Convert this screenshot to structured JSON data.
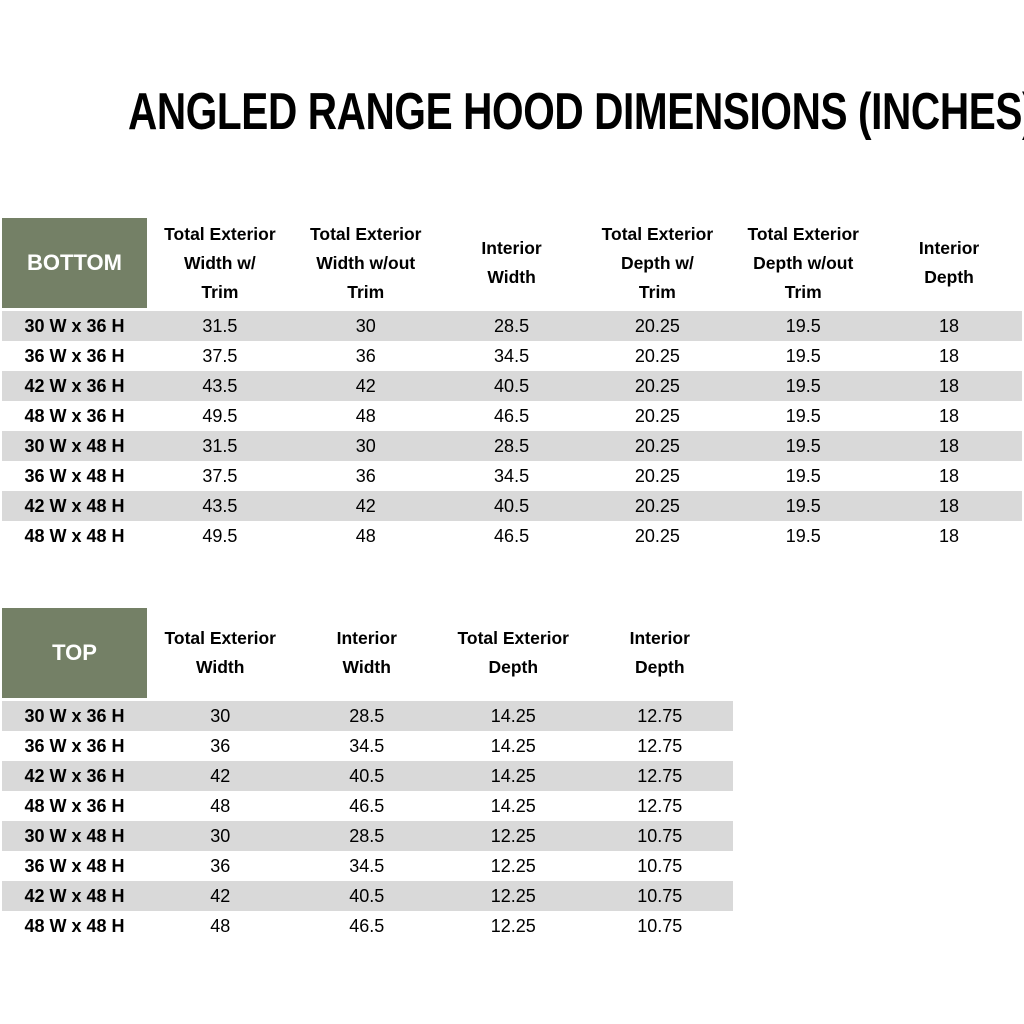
{
  "title": "ANGLED RANGE HOOD DIMENSIONS (INCHES)",
  "colors": {
    "header_cell_green": "#748066",
    "row_stripe_gray": "#d9d9d9",
    "header_label_text": "#ffffff",
    "body_text": "#000000"
  },
  "tables": {
    "bottom": {
      "corner_label": "BOTTOM",
      "columns": [
        [
          "Total Exterior",
          "Width w/",
          "Trim"
        ],
        [
          "Total Exterior",
          "Width w/out",
          "Trim"
        ],
        [
          "Interior",
          "Width"
        ],
        [
          "Total Exterior",
          "Depth w/",
          "Trim"
        ],
        [
          "Total Exterior",
          "Depth w/out",
          "Trim"
        ],
        [
          "Interior",
          "Depth"
        ]
      ],
      "rows": [
        {
          "size": "30 W x 36 H",
          "values": [
            "31.5",
            "30",
            "28.5",
            "20.25",
            "19.5",
            "18"
          ]
        },
        {
          "size": "36 W x 36 H",
          "values": [
            "37.5",
            "36",
            "34.5",
            "20.25",
            "19.5",
            "18"
          ]
        },
        {
          "size": "42 W x 36 H",
          "values": [
            "43.5",
            "42",
            "40.5",
            "20.25",
            "19.5",
            "18"
          ]
        },
        {
          "size": "48 W x 36 H",
          "values": [
            "49.5",
            "48",
            "46.5",
            "20.25",
            "19.5",
            "18"
          ]
        },
        {
          "size": "30 W x 48 H",
          "values": [
            "31.5",
            "30",
            "28.5",
            "20.25",
            "19.5",
            "18"
          ]
        },
        {
          "size": "36 W x 48 H",
          "values": [
            "37.5",
            "36",
            "34.5",
            "20.25",
            "19.5",
            "18"
          ]
        },
        {
          "size": "42 W x 48 H",
          "values": [
            "43.5",
            "42",
            "40.5",
            "20.25",
            "19.5",
            "18"
          ]
        },
        {
          "size": "48 W x 48 H",
          "values": [
            "49.5",
            "48",
            "46.5",
            "20.25",
            "19.5",
            "18"
          ]
        }
      ]
    },
    "top": {
      "corner_label": "TOP",
      "columns": [
        [
          "Total Exterior",
          "Width"
        ],
        [
          "Interior",
          "Width"
        ],
        [
          "Total Exterior",
          "Depth"
        ],
        [
          "Interior",
          "Depth"
        ]
      ],
      "rows": [
        {
          "size": "30 W x 36 H",
          "values": [
            "30",
            "28.5",
            "14.25",
            "12.75"
          ]
        },
        {
          "size": "36 W x 36 H",
          "values": [
            "36",
            "34.5",
            "14.25",
            "12.75"
          ]
        },
        {
          "size": "42 W x 36 H",
          "values": [
            "42",
            "40.5",
            "14.25",
            "12.75"
          ]
        },
        {
          "size": "48 W x 36 H",
          "values": [
            "48",
            "46.5",
            "14.25",
            "12.75"
          ]
        },
        {
          "size": "30 W x 48 H",
          "values": [
            "30",
            "28.5",
            "12.25",
            "10.75"
          ]
        },
        {
          "size": "36 W x 48 H",
          "values": [
            "36",
            "34.5",
            "12.25",
            "10.75"
          ]
        },
        {
          "size": "42 W x 48 H",
          "values": [
            "42",
            "40.5",
            "12.25",
            "10.75"
          ]
        },
        {
          "size": "48 W x 48 H",
          "values": [
            "48",
            "46.5",
            "12.25",
            "10.75"
          ]
        }
      ]
    }
  }
}
